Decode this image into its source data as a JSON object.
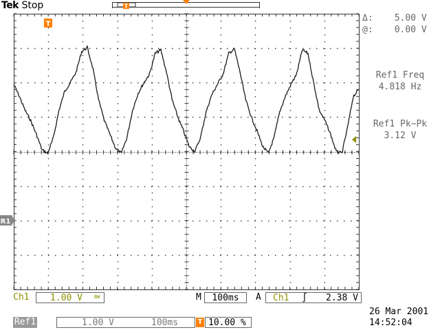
{
  "brand": "Tek",
  "acq_state": "Stop",
  "trigger_marker": "T",
  "ref_marker": "R1",
  "cursor": {
    "delta": "Δ:",
    "delta_value": "5.00 V",
    "at": "@:",
    "at_value": "0.00 V"
  },
  "measurements": [
    {
      "label": "Ref1 Freq",
      "value": "4.818 Hz"
    },
    {
      "label": "Ref1 Pk−Pk",
      "value": "3.12 V"
    }
  ],
  "status": {
    "ch1_label": "Ch1",
    "ch1_scale": "1.00 V",
    "bw_symbol": "BW",
    "m_label": "M",
    "timebase": "100ms",
    "trig_mode": "A",
    "trig_source": "Ch1",
    "trig_slope": "∫",
    "trig_level": "2.38 V"
  },
  "ref": {
    "ref_label": "Ref1",
    "ref_scale": "1.00 V",
    "ref_time": "100ms",
    "trig_pos_icon": "T",
    "trig_pos": "10.00 %"
  },
  "datetime": {
    "date": "26 Mar 2001",
    "time": "14:52:04"
  },
  "colors": {
    "trace": "#1a1a1a",
    "grid": "#333333",
    "accent": "#ff8000",
    "olive": "#8f8f00"
  },
  "chart_data": {
    "type": "line",
    "title": "",
    "xlabel": "",
    "ylabel": "",
    "grid": true,
    "x_divisions": 10,
    "y_divisions": 8,
    "ylim": [
      -5,
      3
    ],
    "series": [
      {
        "values": [
          0.95,
          0.6,
          0.2,
          -0.1,
          -0.5,
          -0.95,
          -1.05,
          -0.6,
          0.2,
          0.75,
          1.0,
          1.3,
          1.9,
          2.02,
          1.4,
          0.5,
          -0.1,
          -0.5,
          -0.9,
          -1.05,
          -0.6,
          0.2,
          0.7,
          1.0,
          1.25,
          1.85,
          1.95,
          1.3,
          0.5,
          0.0,
          -0.4,
          -0.85,
          -1.0,
          -0.6,
          0.15,
          0.65,
          0.95,
          1.25,
          1.85,
          1.98,
          1.3,
          0.5,
          0.0,
          -0.4,
          -0.85,
          -1.05,
          -0.6,
          0.15,
          0.6,
          0.95,
          1.25,
          1.95,
          1.85,
          1.0,
          0.2,
          -0.1,
          -0.5,
          -1.0,
          -1.05,
          -0.3,
          0.6,
          0.8
        ]
      }
    ]
  }
}
